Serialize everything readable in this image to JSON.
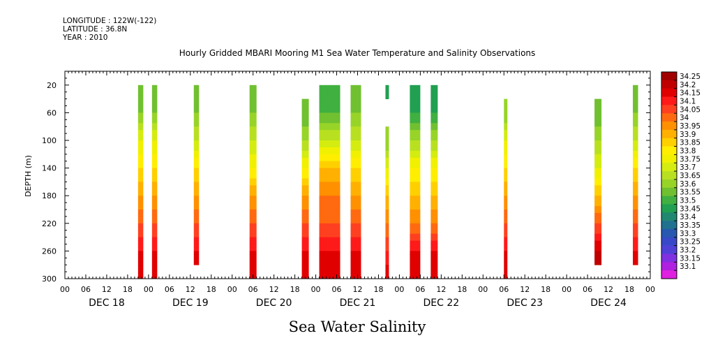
{
  "header": {
    "longitude": "LONGITUDE : 122W(-122)",
    "latitude": "LATITUDE : 36.8N",
    "year": "YEAR : 2010"
  },
  "colors": {
    "background": "#ffffff",
    "axis": "#000000",
    "colorbar_low": "#e020e0",
    "colorbar_high": "#a00000"
  },
  "chart_data": {
    "type": "heatmap",
    "title": "Hourly Gridded MBARI Mooring M1 Sea Water Temperature and Salinity Observations",
    "subtitle": "Sea Water Salinity",
    "ylabel": "DEPTH (m)",
    "xlabel": "",
    "y_inverted": true,
    "ylim": [
      300,
      0
    ],
    "y_ticks": [
      20,
      60,
      100,
      140,
      180,
      220,
      260,
      300
    ],
    "x_range_hours": [
      0,
      168
    ],
    "x_hour_ticks": [
      "00",
      "06",
      "12",
      "18",
      "00",
      "06",
      "12",
      "18",
      "00",
      "06",
      "12",
      "18",
      "00",
      "06",
      "12",
      "18",
      "00",
      "06",
      "12",
      "18",
      "00",
      "06",
      "12",
      "18",
      "00",
      "06",
      "12",
      "18",
      "00"
    ],
    "x_day_labels": [
      "DEC 18",
      "DEC 19",
      "DEC 20",
      "DEC 21",
      "DEC 22",
      "DEC 23",
      "DEC 24"
    ],
    "colorbar_levels": [
      "34.25",
      "34.2",
      "34.15",
      "34.1",
      "34.05",
      "34",
      "33.95",
      "33.9",
      "33.85",
      "33.8",
      "33.75",
      "33.7",
      "33.65",
      "33.6",
      "33.55",
      "33.5",
      "33.45",
      "33.4",
      "33.35",
      "33.3",
      "33.25",
      "33.2",
      "33.15",
      "33.1"
    ],
    "colorbar_colors": [
      "#a00000",
      "#c00000",
      "#e00000",
      "#ff1a1a",
      "#ff4020",
      "#ff6a10",
      "#ff9000",
      "#ffb000",
      "#ffd000",
      "#ffee00",
      "#f0f000",
      "#d4ec10",
      "#b8e020",
      "#98d428",
      "#70c030",
      "#40b040",
      "#20a050",
      "#208870",
      "#207090",
      "#2858b0",
      "#3848c8",
      "#5040d8",
      "#8030e0",
      "#b020e0",
      "#e020e0"
    ],
    "depths": [
      20,
      60,
      100,
      140,
      180,
      220,
      260,
      300
    ],
    "columns": [
      {
        "x0": 21,
        "x1": 22.5,
        "values": [
          33.55,
          33.6,
          33.75,
          33.85,
          33.95,
          34.05,
          34.15,
          34.2
        ]
      },
      {
        "x0": 25,
        "x1": 26.5,
        "values": [
          33.55,
          33.6,
          33.75,
          33.85,
          33.95,
          34.05,
          34.15,
          34.2
        ]
      },
      {
        "x0": 37,
        "x1": 38.5,
        "values": [
          33.55,
          33.6,
          33.7,
          33.85,
          33.95,
          34.05,
          34.15,
          null
        ]
      },
      {
        "x0": 53,
        "x1": 55,
        "values": [
          33.55,
          33.6,
          33.7,
          33.8,
          33.95,
          34.05,
          34.15,
          34.2
        ]
      },
      {
        "x0": 68,
        "x1": 70,
        "values": [
          null,
          33.55,
          33.65,
          33.8,
          33.95,
          34.05,
          34.15,
          34.2
        ]
      },
      {
        "x0": 73,
        "x1": 79,
        "values": [
          33.5,
          33.55,
          33.7,
          33.9,
          34.0,
          34.05,
          34.15,
          34.2
        ]
      },
      {
        "x0": 82,
        "x1": 85,
        "values": [
          33.55,
          33.6,
          33.7,
          33.85,
          33.95,
          34.05,
          34.15,
          34.2
        ]
      },
      {
        "x0": 92,
        "x1": 93,
        "values": [
          33.45,
          null,
          33.6,
          33.75,
          33.9,
          34.0,
          34.1,
          34.2
        ]
      },
      {
        "x0": 99,
        "x1": 102,
        "values": [
          33.45,
          33.5,
          33.65,
          33.8,
          33.9,
          34.0,
          34.15,
          34.2
        ]
      },
      {
        "x0": 105,
        "x1": 107,
        "values": [
          33.45,
          33.5,
          33.65,
          33.8,
          33.9,
          34.0,
          34.15,
          34.2
        ]
      },
      {
        "x0": 126,
        "x1": 127,
        "values": [
          null,
          33.6,
          33.75,
          33.85,
          33.95,
          34.05,
          34.15,
          34.2
        ]
      },
      {
        "x0": 152,
        "x1": 154,
        "values": [
          null,
          33.55,
          33.65,
          33.75,
          33.9,
          34.05,
          34.2,
          null
        ]
      },
      {
        "x0": 163,
        "x1": 164.5,
        "values": [
          33.55,
          33.6,
          33.7,
          33.85,
          33.95,
          34.05,
          34.15,
          null
        ]
      }
    ]
  }
}
